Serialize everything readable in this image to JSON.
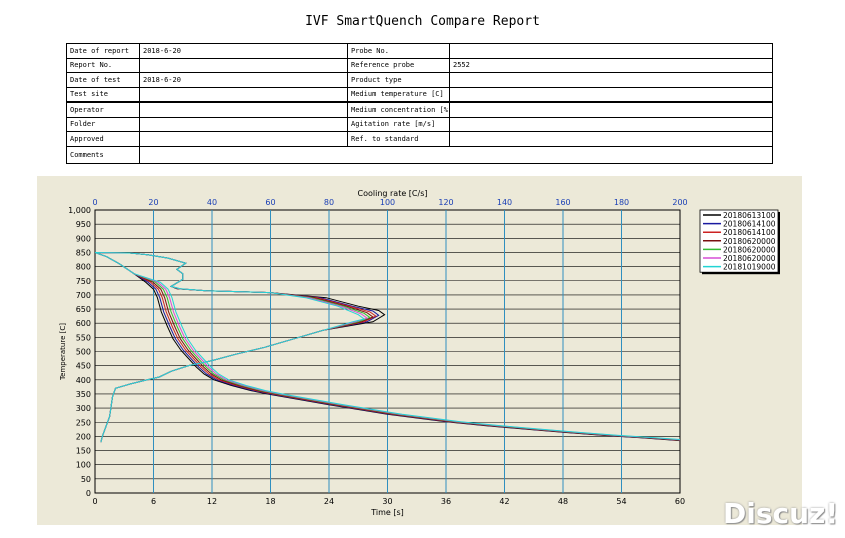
{
  "report": {
    "title": "IVF SmartQuench Compare Report",
    "rows": [
      {
        "left_label": "Date of report",
        "left_value": "2018-6-20",
        "right_label": "Probe No.",
        "right_value": ""
      },
      {
        "left_label": "Report No.",
        "left_value": "",
        "right_label": "Reference probe",
        "right_value": "2552"
      },
      {
        "left_label": "Date of test",
        "left_value": "2018-6-20",
        "right_label": "Product type",
        "right_value": ""
      },
      {
        "left_label": "Test site",
        "left_value": "",
        "right_label": "Medium temperature [C]",
        "right_value": ""
      },
      {
        "left_label": "Operator",
        "left_value": "",
        "right_label": "Medium concentration [%]",
        "right_value": ""
      },
      {
        "left_label": "Folder",
        "left_value": "",
        "right_label": "Agitation rate [m/s]",
        "right_value": ""
      },
      {
        "left_label": "Approved",
        "left_value": "",
        "right_label": "Ref. to standard",
        "right_value": ""
      },
      {
        "left_label": "Comments",
        "left_value": "",
        "right_label": "",
        "right_value": ""
      }
    ]
  },
  "chart_data": {
    "type": "line",
    "xlabel": "Time [s]",
    "x2label": "Cooling rate [C/s]",
    "ylabel": "Temperature [C]",
    "xlim": [
      0,
      60
    ],
    "x2lim": [
      0,
      200
    ],
    "ylim": [
      0,
      1000
    ],
    "xticks": [
      "0",
      "6",
      "12",
      "18",
      "24",
      "30",
      "36",
      "42",
      "48",
      "54",
      "60"
    ],
    "x2ticks": [
      "0",
      "20",
      "40",
      "60",
      "80",
      "100",
      "120",
      "140",
      "160",
      "180",
      "200"
    ],
    "yticks": [
      "0",
      "50",
      "100",
      "150",
      "200",
      "250",
      "300",
      "350",
      "400",
      "450",
      "500",
      "550",
      "600",
      "650",
      "700",
      "750",
      "800",
      "850",
      "900",
      "950",
      "1,000"
    ],
    "grid": true,
    "legend_position": "right",
    "colors": {
      "panel_bg": "#ece9d8",
      "grid": "#2f8fbf",
      "axis_text_top": "#1a3fb5"
    },
    "series": [
      {
        "name": "20180613100",
        "color": "#000000",
        "peak_rate": 99,
        "peak_temp": 630
      },
      {
        "name": "20180614100",
        "color": "#1a1aa0",
        "peak_rate": 97,
        "peak_temp": 628
      },
      {
        "name": "20180614100",
        "color": "#cc2222",
        "peak_rate": 96,
        "peak_temp": 625
      },
      {
        "name": "20180620000",
        "color": "#7a1010",
        "peak_rate": 95,
        "peak_temp": 622
      },
      {
        "name": "20180620000",
        "color": "#33bb33",
        "peak_rate": 94,
        "peak_temp": 620
      },
      {
        "name": "20180620000",
        "color": "#d64fd6",
        "peak_rate": 93,
        "peak_temp": 618
      },
      {
        "name": "20181019000",
        "color": "#22d4d4",
        "peak_rate": 92,
        "peak_temp": 615
      }
    ]
  },
  "watermark": "Discuz!"
}
